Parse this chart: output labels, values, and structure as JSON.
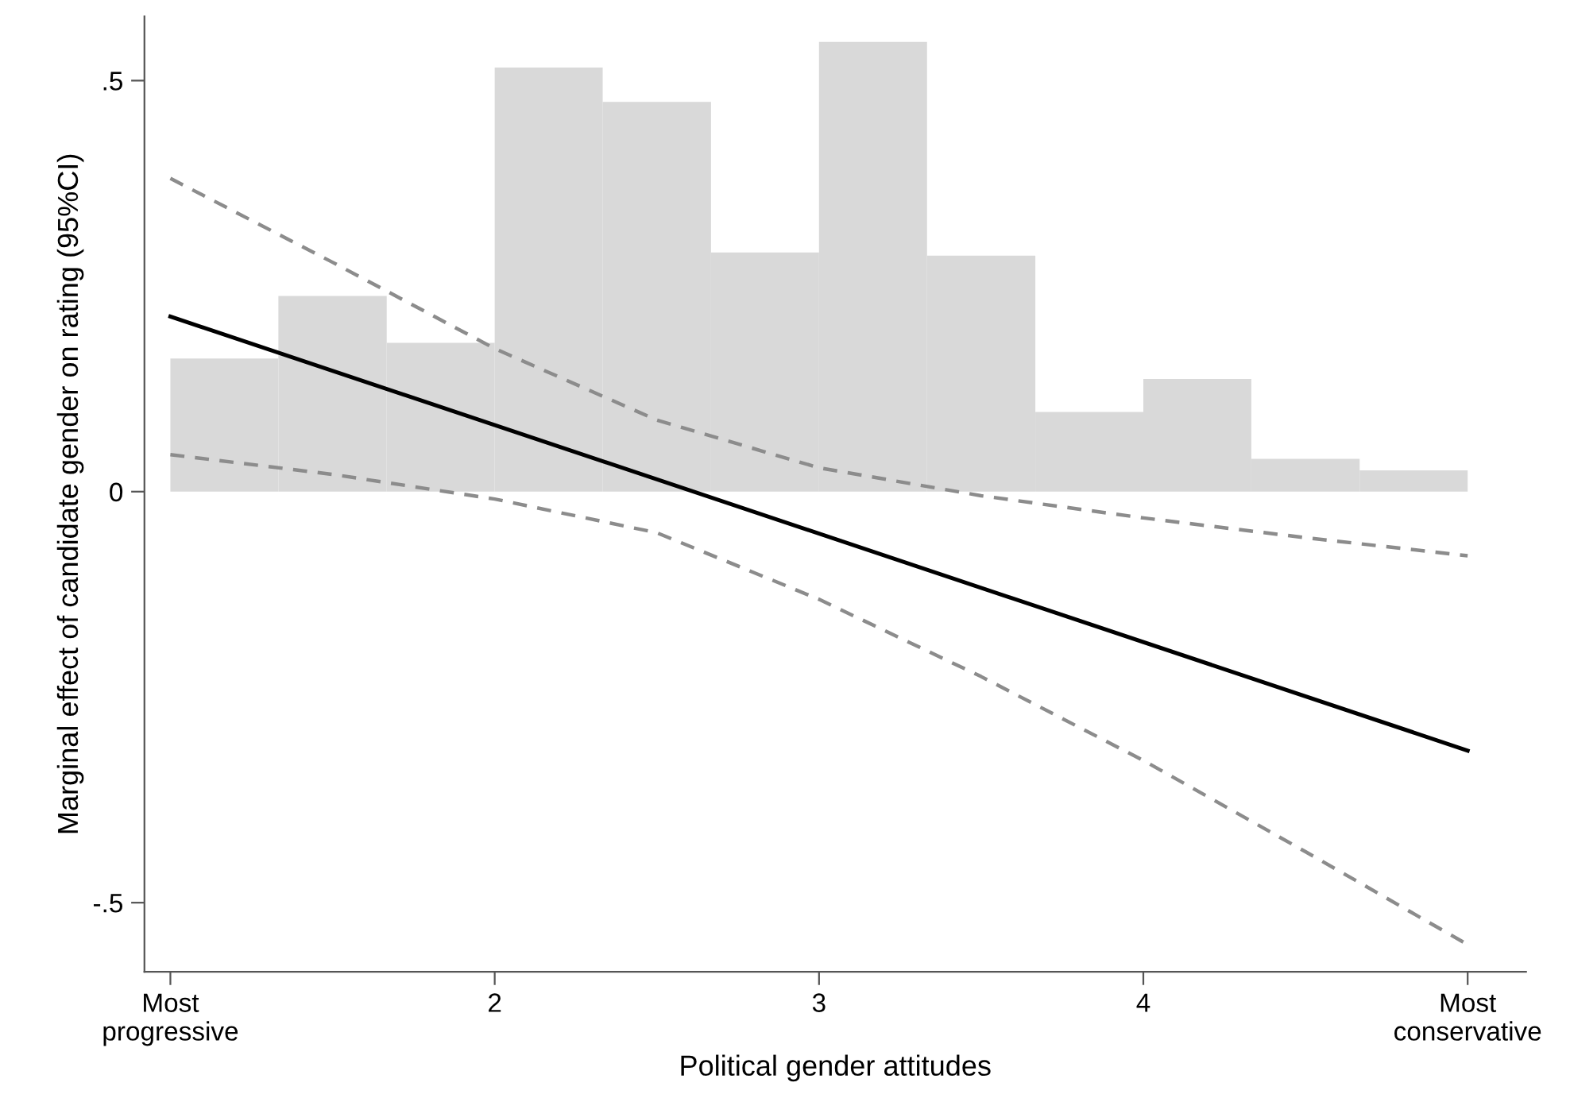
{
  "chart_data": {
    "type": "line",
    "xlabel": "Political gender attitudes",
    "ylabel": "Marginal effect of candidate gender on rating (95%CI)",
    "xlim": [
      0.92,
      5.18
    ],
    "ylim": [
      -0.584,
      0.578
    ],
    "xticks": [
      {
        "value": 1,
        "label": "Most\nprogressive"
      },
      2,
      3,
      4,
      {
        "value": 5,
        "label": "Most\nconservative"
      }
    ],
    "yticks": [
      {
        "value": -0.5,
        "label": "-.5"
      },
      0,
      {
        "value": 0.5,
        "label": ".5"
      }
    ],
    "grid": false,
    "legend": false,
    "series": [
      {
        "type": "histogram",
        "color": "#d9d9d9",
        "bins": [
          1,
          1.333,
          1.667,
          2,
          2.333,
          2.667,
          3,
          3.333,
          3.667,
          4,
          4.333,
          4.667,
          5
        ],
        "values": [
          0.162,
          0.238,
          0.181,
          0.516,
          0.474,
          0.291,
          0.547,
          0.287,
          0.097,
          0.137,
          0.04,
          0.026
        ]
      },
      {
        "type": "line",
        "color": "#8c8c8c",
        "line_style": "dashed",
        "x": [
          1,
          1.5,
          2,
          2.5,
          3,
          3.5,
          4,
          4.5,
          5
        ],
        "values": [
          0.381,
          0.279,
          0.174,
          0.087,
          0.029,
          -0.005,
          -0.032,
          -0.056,
          -0.078
        ]
      },
      {
        "type": "line",
        "color": "#8c8c8c",
        "line_style": "dashed",
        "x": [
          1,
          1.5,
          2,
          2.5,
          3,
          3.5,
          4,
          4.5,
          5
        ],
        "values": [
          0.045,
          0.021,
          -0.009,
          -0.05,
          -0.131,
          -0.225,
          -0.327,
          -0.438,
          -0.551
        ]
      },
      {
        "color": "#000000",
        "line_style": "solid",
        "x": [
          1,
          5
        ],
        "values": [
          0.213,
          -0.315
        ]
      }
    ]
  }
}
